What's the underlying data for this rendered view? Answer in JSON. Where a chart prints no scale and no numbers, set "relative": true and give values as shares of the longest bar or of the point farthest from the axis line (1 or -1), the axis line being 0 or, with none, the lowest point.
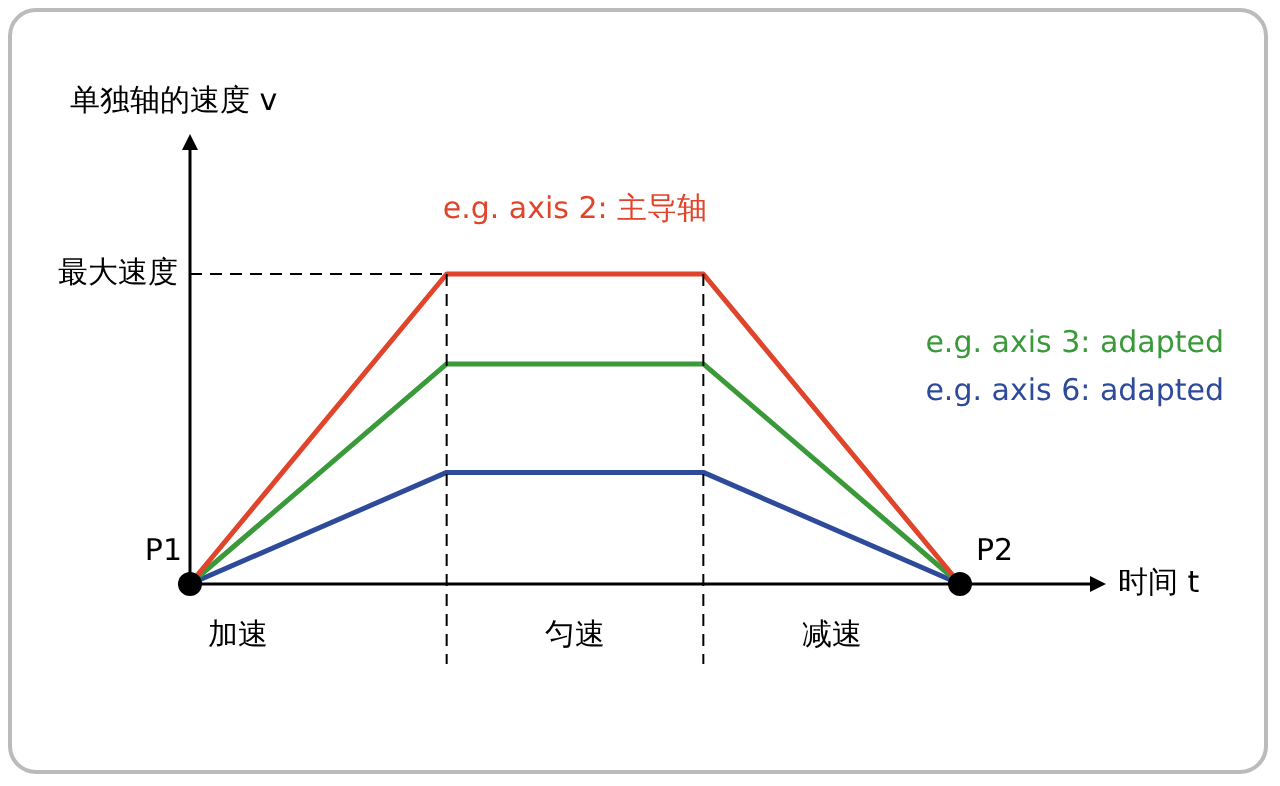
{
  "chart_data": {
    "type": "line",
    "relative": true,
    "xlabel": "时间 t",
    "legend": false,
    "line_style": "solid",
    "categories": [
      null,
      null,
      null,
      null
    ],
    "series": [
      {
        "name": "e.g. axis 2: 主导轴",
        "color": "#e0452b",
        "values": [
          0,
          1,
          1,
          0
        ]
      },
      {
        "name": "e.g. axis 3: adapted",
        "color": "#3a9a3a",
        "values": [
          0,
          0.71,
          0.71,
          0
        ]
      },
      {
        "name": "e.g. axis 6: adapted",
        "color": "#2e4a9a",
        "values": [
          0,
          0.36,
          0.36,
          0
        ]
      }
    ],
    "ref_lines": [
      {
        "axis": "y",
        "value": 1,
        "label": "最大速度",
        "line_style": "dashed",
        "color": "#000000"
      }
    ],
    "annotations": [
      "单独轴的速度 v",
      "P1",
      "P2",
      "加速",
      "匀速",
      "减速"
    ]
  }
}
